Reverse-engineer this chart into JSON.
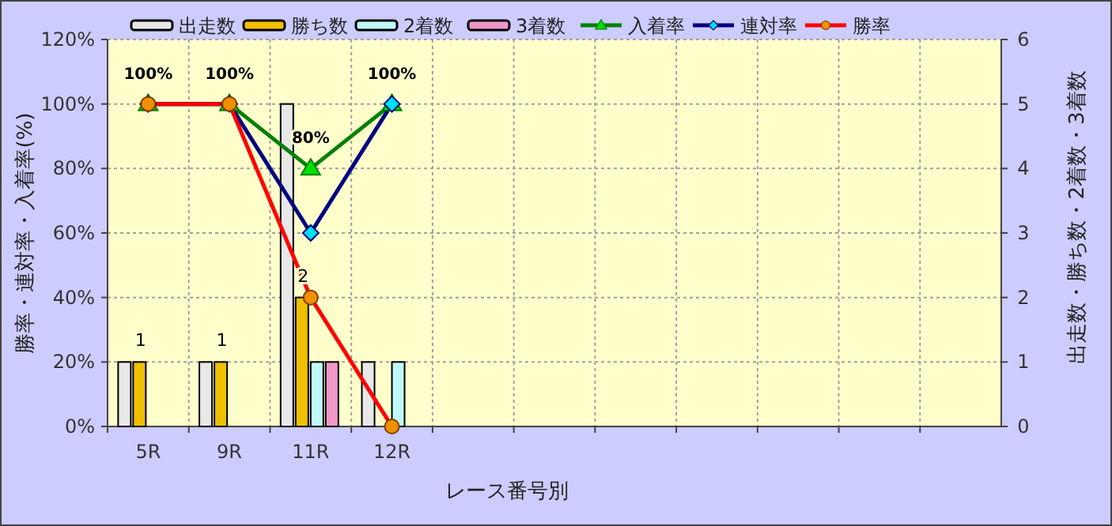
{
  "chart_data": {
    "type": "bar",
    "xlabel": "レース番号別",
    "ylabel": "勝率・連対率・入着率(%)",
    "y2label": "出走数・勝ち数・2着数・3着数",
    "categories": [
      "5R",
      "9R",
      "11R",
      "12R",
      null,
      null,
      null,
      null,
      null,
      null,
      null
    ],
    "series": [
      {
        "name": "出走数",
        "axis": "y2",
        "color": "#e8e8e8",
        "values": [
          1,
          1,
          5,
          1,
          null,
          null,
          null,
          null,
          null,
          null,
          null
        ]
      },
      {
        "name": "勝ち数",
        "axis": "y2",
        "color": "#f0c000",
        "values": [
          1,
          1,
          2,
          0,
          null,
          null,
          null,
          null,
          null,
          null,
          null
        ],
        "value_labels": [
          "1",
          "1",
          "2",
          null,
          null,
          null,
          null,
          null,
          null,
          null,
          null
        ]
      },
      {
        "name": "2着数",
        "axis": "y2",
        "color": "#c0f8f8",
        "values": [
          0,
          0,
          1,
          1,
          null,
          null,
          null,
          null,
          null,
          null,
          null
        ]
      },
      {
        "name": "3着数",
        "axis": "y2",
        "color": "#f098c8",
        "values": [
          0,
          0,
          1,
          0,
          null,
          null,
          null,
          null,
          null,
          null,
          null
        ]
      },
      {
        "name": "入着率",
        "type": "line",
        "axis": "y",
        "color": "#008000",
        "marker": "triangle",
        "values": [
          100,
          100,
          80,
          100,
          null,
          null,
          null,
          null,
          null,
          null,
          null
        ],
        "value_labels": [
          "100%",
          "100%",
          "80%",
          "100%",
          null,
          null,
          null,
          null,
          null,
          null,
          null
        ]
      },
      {
        "name": "連対率",
        "type": "line",
        "axis": "y",
        "color": "#000080",
        "marker": "diamond",
        "values": [
          100,
          100,
          60,
          100,
          null,
          null,
          null,
          null,
          null,
          null,
          null
        ]
      },
      {
        "name": "勝率",
        "type": "line",
        "axis": "y",
        "color": "#ff0000",
        "marker": "circle",
        "values": [
          100,
          100,
          40,
          0,
          null,
          null,
          null,
          null,
          null,
          null,
          null
        ]
      }
    ],
    "ylim": [
      0,
      120
    ],
    "yticks": [
      {
        "value": 0,
        "label": "0%"
      },
      {
        "value": 20,
        "label": "20%"
      },
      {
        "value": 40,
        "label": "40%"
      },
      {
        "value": 60,
        "label": "60%"
      },
      {
        "value": 80,
        "label": "80%"
      },
      {
        "value": 100,
        "label": "100%"
      },
      {
        "value": 120,
        "label": "120%"
      }
    ],
    "y2lim": [
      0,
      6
    ],
    "y2ticks": [
      0,
      1,
      2,
      3,
      4,
      5,
      6
    ],
    "grid": true,
    "legend": "top",
    "line_style": "solid"
  }
}
